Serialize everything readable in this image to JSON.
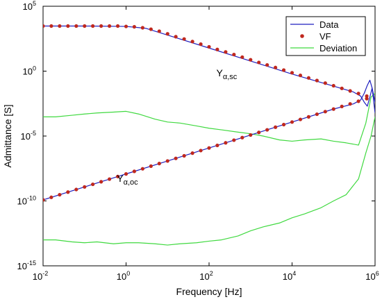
{
  "chart_data": {
    "type": "line",
    "title": "",
    "xlabel": "Frequency [Hz]",
    "ylabel": "Admittance [S]",
    "x_scale": "log",
    "y_scale": "log",
    "xlim": [
      0.01,
      1000000
    ],
    "ylim": [
      1e-15,
      100000
    ],
    "x_ticks": [
      {
        "value": 0.01,
        "base": "10",
        "exp": "-2"
      },
      {
        "value": 1,
        "base": "10",
        "exp": "0"
      },
      {
        "value": 100,
        "base": "10",
        "exp": "2"
      },
      {
        "value": 10000,
        "base": "10",
        "exp": "4"
      },
      {
        "value": 1000000,
        "base": "10",
        "exp": "6"
      }
    ],
    "y_ticks": [
      {
        "value": 1e-15,
        "base": "10",
        "exp": "-15"
      },
      {
        "value": 1e-10,
        "base": "10",
        "exp": "-10"
      },
      {
        "value": 1e-05,
        "base": "10",
        "exp": "-5"
      },
      {
        "value": 1,
        "base": "10",
        "exp": "0"
      },
      {
        "value": 100000,
        "base": "10",
        "exp": "5"
      }
    ],
    "legend": {
      "position": "top-right",
      "entries": [
        {
          "label": "Data",
          "color": "#1f1fbf",
          "marker": "line"
        },
        {
          "label": "VF",
          "color": "#c0281e",
          "marker": "dot"
        },
        {
          "label": "Deviation",
          "color": "#3fd93f",
          "marker": "line"
        }
      ]
    },
    "annotations": [
      {
        "text": "Y",
        "sub": "α,sc",
        "x": 150,
        "y": 0.4
      },
      {
        "text": "Y",
        "sub": "α,oc",
        "x": 0.6,
        "y": 3e-09
      }
    ],
    "series": [
      {
        "name": "Data",
        "curve": "Y_alpha_sc",
        "color": "#1f1fbf",
        "style": "line",
        "points": [
          [
            0.01,
            3000
          ],
          [
            0.1,
            3000
          ],
          [
            1,
            2800
          ],
          [
            3,
            2000
          ],
          [
            10,
            600
          ],
          [
            100,
            60
          ],
          [
            1000,
            6
          ],
          [
            10000,
            0.6
          ],
          [
            100000,
            0.07
          ],
          [
            300000,
            0.025
          ],
          [
            450000,
            0.012
          ],
          [
            550000,
            0.004
          ],
          [
            650000,
            0.002
          ],
          [
            750000,
            0.01
          ],
          [
            850000,
            0.05
          ],
          [
            1000000,
            0.0006
          ]
        ]
      },
      {
        "name": "Data",
        "curve": "Y_alpha_oc",
        "color": "#1f1fbf",
        "style": "line",
        "points": [
          [
            0.01,
            1.2e-10
          ],
          [
            0.1,
            1.2e-09
          ],
          [
            1,
            1.2e-08
          ],
          [
            10,
            1.2e-07
          ],
          [
            100,
            1.2e-06
          ],
          [
            1000,
            1.2e-05
          ],
          [
            10000,
            0.00012
          ],
          [
            100000,
            0.0012
          ],
          [
            300000,
            0.003
          ],
          [
            450000,
            0.006
          ],
          [
            550000,
            0.02
          ],
          [
            650000,
            0.08
          ],
          [
            750000,
            0.2
          ],
          [
            850000,
            0.05
          ],
          [
            1000000,
            0.004
          ]
        ]
      },
      {
        "name": "VF",
        "curve": "Y_alpha_sc",
        "color": "#c0281e",
        "style": "markers",
        "points": [
          [
            0.01,
            3000
          ],
          [
            0.0158,
            3000
          ],
          [
            0.0251,
            3000
          ],
          [
            0.0398,
            3000
          ],
          [
            0.0631,
            3000
          ],
          [
            0.1,
            3000
          ],
          [
            0.158,
            3000
          ],
          [
            0.251,
            3000
          ],
          [
            0.398,
            3000
          ],
          [
            0.631,
            3000
          ],
          [
            1,
            2800
          ],
          [
            1.58,
            2600
          ],
          [
            2.51,
            2200
          ],
          [
            3.98,
            1700
          ],
          [
            6.31,
            1200
          ],
          [
            10,
            750
          ],
          [
            15.8,
            450
          ],
          [
            25.1,
            300
          ],
          [
            39.8,
            190
          ],
          [
            63.1,
            120
          ],
          [
            100,
            75
          ],
          [
            158,
            47
          ],
          [
            251,
            30
          ],
          [
            398,
            19
          ],
          [
            631,
            12
          ],
          [
            1000,
            7.5
          ],
          [
            1585,
            4.7
          ],
          [
            2512,
            3
          ],
          [
            3981,
            1.9
          ],
          [
            6310,
            1.2
          ],
          [
            10000,
            0.75
          ],
          [
            15849,
            0.47
          ],
          [
            25119,
            0.3
          ],
          [
            39811,
            0.19
          ],
          [
            63096,
            0.12
          ],
          [
            100000,
            0.075
          ],
          [
            158489,
            0.047
          ],
          [
            251189,
            0.03
          ],
          [
            398107,
            0.019
          ],
          [
            630957,
            0.012
          ]
        ]
      },
      {
        "name": "VF",
        "curve": "Y_alpha_oc",
        "color": "#c0281e",
        "style": "markers",
        "points": [
          [
            0.01,
            1.2e-10
          ],
          [
            0.0158,
            1.9e-10
          ],
          [
            0.0251,
            3e-10
          ],
          [
            0.0398,
            4.8e-10
          ],
          [
            0.0631,
            7.6e-10
          ],
          [
            0.1,
            1.2e-09
          ],
          [
            0.158,
            1.9e-09
          ],
          [
            0.251,
            3e-09
          ],
          [
            0.398,
            4.8e-09
          ],
          [
            0.631,
            7.6e-09
          ],
          [
            1,
            1.2e-08
          ],
          [
            1.58,
            1.9e-08
          ],
          [
            2.51,
            3e-08
          ],
          [
            3.98,
            4.8e-08
          ],
          [
            6.31,
            7.6e-08
          ],
          [
            10,
            1.2e-07
          ],
          [
            15.8,
            1.9e-07
          ],
          [
            25.1,
            3e-07
          ],
          [
            39.8,
            4.8e-07
          ],
          [
            63.1,
            7.6e-07
          ],
          [
            100,
            1.2e-06
          ],
          [
            158,
            1.9e-06
          ],
          [
            251,
            3e-06
          ],
          [
            398,
            4.8e-06
          ],
          [
            631,
            7.6e-06
          ],
          [
            1000,
            1.2e-05
          ],
          [
            1585,
            1.9e-05
          ],
          [
            2512,
            3e-05
          ],
          [
            3981,
            4.8e-05
          ],
          [
            6310,
            7.6e-05
          ],
          [
            10000,
            0.00012
          ],
          [
            15849,
            0.00019
          ],
          [
            25119,
            0.0003
          ],
          [
            39811,
            0.00048
          ],
          [
            63096,
            0.00076
          ],
          [
            100000,
            0.0012
          ],
          [
            158489,
            0.0019
          ],
          [
            251189,
            0.003
          ],
          [
            398107,
            0.0048
          ],
          [
            630957,
            0.0076
          ]
        ]
      },
      {
        "name": "Deviation",
        "curve": "Y_alpha_sc",
        "color": "#3fd93f",
        "style": "line",
        "points": [
          [
            0.01,
            0.0003
          ],
          [
            0.02,
            0.0003
          ],
          [
            0.05,
            0.0004
          ],
          [
            0.1,
            0.0005
          ],
          [
            0.2,
            0.0006
          ],
          [
            0.5,
            0.0007
          ],
          [
            1,
            0.0008
          ],
          [
            2,
            0.0005
          ],
          [
            5,
            0.0002
          ],
          [
            10,
            0.00012
          ],
          [
            20,
            0.0001
          ],
          [
            50,
            6e-05
          ],
          [
            100,
            4e-05
          ],
          [
            200,
            3e-05
          ],
          [
            500,
            2e-05
          ],
          [
            1000,
            1.5e-05
          ],
          [
            2000,
            1e-05
          ],
          [
            5000,
            5e-06
          ],
          [
            10000,
            4e-06
          ],
          [
            20000,
            5e-06
          ],
          [
            50000,
            6e-06
          ],
          [
            100000,
            4e-06
          ],
          [
            200000,
            3e-06
          ],
          [
            400000,
            2e-06
          ],
          [
            600000,
            0.0001
          ],
          [
            800000,
            0.01
          ],
          [
            1000000,
            0.02
          ]
        ]
      },
      {
        "name": "Deviation",
        "curve": "Y_alpha_oc",
        "color": "#3fd93f",
        "style": "line",
        "points": [
          [
            0.01,
            1e-13
          ],
          [
            0.02,
            1e-13
          ],
          [
            0.05,
            7e-14
          ],
          [
            0.1,
            6e-14
          ],
          [
            0.2,
            7e-14
          ],
          [
            0.5,
            5e-14
          ],
          [
            1,
            6e-14
          ],
          [
            2,
            6e-14
          ],
          [
            5,
            5e-14
          ],
          [
            10,
            4e-14
          ],
          [
            20,
            5e-14
          ],
          [
            50,
            6e-14
          ],
          [
            100,
            8e-14
          ],
          [
            200,
            1e-13
          ],
          [
            500,
            2e-13
          ],
          [
            1000,
            5e-13
          ],
          [
            2000,
            1e-12
          ],
          [
            5000,
            2e-12
          ],
          [
            10000,
            5e-12
          ],
          [
            20000,
            1e-11
          ],
          [
            50000,
            3e-11
          ],
          [
            100000,
            1e-10
          ],
          [
            200000,
            3e-10
          ],
          [
            400000,
            5e-09
          ],
          [
            600000,
            5e-07
          ],
          [
            800000,
            1e-05
          ],
          [
            1000000,
            0.0003
          ]
        ]
      }
    ]
  }
}
